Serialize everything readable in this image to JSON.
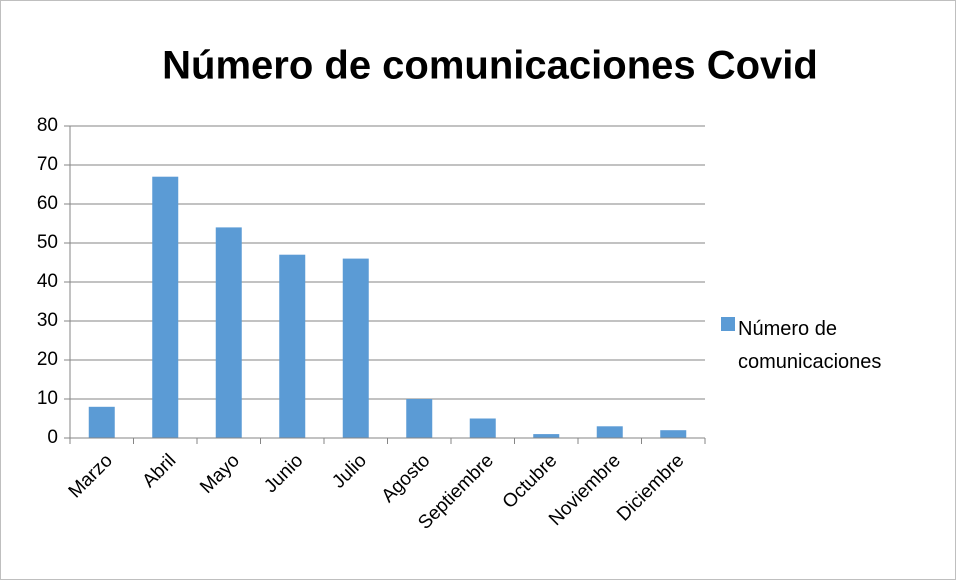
{
  "chart_data": {
    "type": "bar",
    "title": "Número de comunicaciones Covid",
    "categories": [
      "Marzo",
      "Abril",
      "Mayo",
      "Junio",
      "Julio",
      "Agosto",
      "Septiembre",
      "Octubre",
      "Noviembre",
      "Diciembre"
    ],
    "series": [
      {
        "name": "Número de comunicaciones",
        "color": "#5b9bd5",
        "values": [
          8,
          67,
          54,
          47,
          46,
          10,
          5,
          1,
          3,
          2
        ]
      }
    ],
    "ylim": [
      0,
      80
    ],
    "yticks": [
      0,
      10,
      20,
      30,
      40,
      50,
      60,
      70,
      80
    ],
    "grid": true,
    "legend": "right"
  }
}
